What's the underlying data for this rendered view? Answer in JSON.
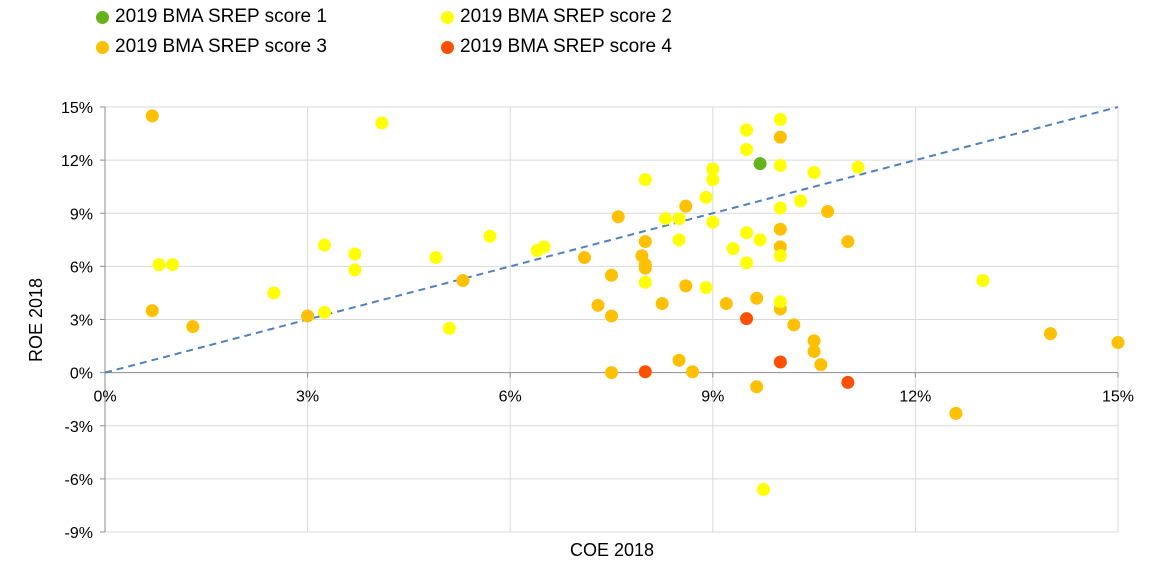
{
  "chart_data": {
    "type": "scatter",
    "xlabel": "COE 2018",
    "ylabel": "ROE 2018",
    "xlim": [
      0,
      15
    ],
    "ylim": [
      -9,
      15
    ],
    "x_ticks": [
      0,
      3,
      6,
      9,
      12,
      15
    ],
    "y_ticks": [
      -9,
      -6,
      -3,
      0,
      3,
      6,
      9,
      12,
      15
    ],
    "x_tick_labels": [
      "0%",
      "3%",
      "6%",
      "9%",
      "12%",
      "15%"
    ],
    "y_tick_labels": [
      "-9%",
      "-6%",
      "-3%",
      "0%",
      "3%",
      "6%",
      "9%",
      "12%",
      "15%"
    ],
    "grid": true,
    "legend_position": "top-left",
    "reference_line": {
      "from": [
        0,
        0
      ],
      "to": [
        15,
        15
      ],
      "style": "dashed",
      "color": "#4f81bd"
    },
    "series": [
      {
        "name": "2019 BMA SREP score 1",
        "color": "#66b21a",
        "points": [
          [
            9.7,
            11.8
          ]
        ]
      },
      {
        "name": "2019 BMA SREP score 2",
        "color": "#ffff00",
        "points": [
          [
            0.8,
            6.1
          ],
          [
            1.0,
            6.1
          ],
          [
            2.5,
            4.5
          ],
          [
            3.25,
            7.2
          ],
          [
            3.25,
            3.4
          ],
          [
            3.7,
            6.7
          ],
          [
            3.7,
            5.8
          ],
          [
            4.1,
            14.1
          ],
          [
            4.9,
            6.5
          ],
          [
            5.1,
            2.5
          ],
          [
            5.7,
            7.7
          ],
          [
            6.4,
            6.9
          ],
          [
            6.5,
            7.1
          ],
          [
            8.0,
            10.9
          ],
          [
            8.0,
            5.1
          ],
          [
            8.3,
            8.7
          ],
          [
            8.5,
            8.7
          ],
          [
            8.5,
            7.5
          ],
          [
            8.9,
            9.9
          ],
          [
            8.9,
            4.8
          ],
          [
            9.0,
            11.5
          ],
          [
            9.0,
            10.9
          ],
          [
            9.0,
            8.5
          ],
          [
            9.3,
            7.0
          ],
          [
            9.5,
            13.7
          ],
          [
            9.5,
            12.6
          ],
          [
            9.5,
            7.9
          ],
          [
            9.5,
            6.2
          ],
          [
            9.7,
            7.5
          ],
          [
            9.75,
            -6.6
          ],
          [
            10.0,
            14.3
          ],
          [
            10.0,
            11.7
          ],
          [
            10.0,
            9.3
          ],
          [
            10.0,
            6.6
          ],
          [
            10.0,
            4.0
          ],
          [
            10.3,
            9.7
          ],
          [
            10.5,
            11.3
          ],
          [
            11.15,
            11.6
          ],
          [
            13.0,
            5.2
          ]
        ]
      },
      {
        "name": "2019 BMA SREP score 3",
        "color": "#ffc000",
        "points": [
          [
            0.7,
            14.5
          ],
          [
            0.7,
            3.5
          ],
          [
            1.3,
            2.6
          ],
          [
            3.0,
            3.2
          ],
          [
            5.3,
            5.2
          ],
          [
            7.1,
            6.5
          ],
          [
            7.3,
            3.8
          ],
          [
            7.5,
            5.5
          ],
          [
            7.5,
            3.2
          ],
          [
            7.5,
            0.0
          ],
          [
            7.6,
            8.8
          ],
          [
            7.95,
            6.6
          ],
          [
            8.0,
            7.4
          ],
          [
            8.0,
            6.1
          ],
          [
            8.0,
            5.9
          ],
          [
            8.25,
            3.9
          ],
          [
            8.5,
            0.7
          ],
          [
            8.6,
            9.4
          ],
          [
            8.6,
            4.9
          ],
          [
            8.7,
            0.05
          ],
          [
            9.2,
            3.9
          ],
          [
            9.65,
            4.2
          ],
          [
            9.65,
            -0.8
          ],
          [
            10.0,
            13.3
          ],
          [
            10.0,
            8.1
          ],
          [
            10.0,
            7.1
          ],
          [
            10.0,
            3.6
          ],
          [
            10.2,
            2.7
          ],
          [
            10.5,
            1.8
          ],
          [
            10.5,
            1.2
          ],
          [
            10.6,
            0.45
          ],
          [
            10.7,
            9.1
          ],
          [
            11.0,
            7.4
          ],
          [
            12.6,
            -2.3
          ],
          [
            14.0,
            2.2
          ],
          [
            15.0,
            1.7
          ]
        ]
      },
      {
        "name": "2019 BMA SREP score 4",
        "color": "#ff5000",
        "points": [
          [
            8.0,
            0.05
          ],
          [
            9.5,
            3.05
          ],
          [
            10.0,
            0.6
          ],
          [
            11.0,
            -0.55
          ]
        ]
      }
    ]
  }
}
